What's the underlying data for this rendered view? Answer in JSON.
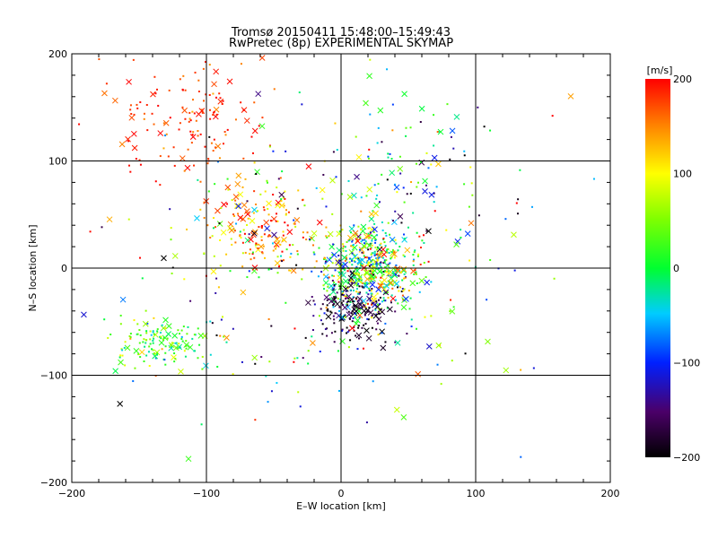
{
  "chart_data": {
    "type": "scatter",
    "title": "Tromsø 20150411 15:48:00–15:49:43",
    "subtitle": "RwPretec (8p) EXPERIMENTAL SKYMAP",
    "xlabel": "E–W location [km]",
    "ylabel": "N–S location [km]",
    "xlim": [
      -200,
      200
    ],
    "ylim": [
      -200,
      200
    ],
    "xticks": [
      "−200",
      "−100",
      "0",
      "100",
      "200"
    ],
    "yticks": [
      "−200",
      "−100",
      "0",
      "100",
      "200"
    ],
    "grid": "crosshair lines at 0 and ±100",
    "colorbar": {
      "label": "[m/s]",
      "range": [
        -200,
        200
      ],
      "ticks": [
        "200",
        "100",
        "0",
        "−100",
        "−200"
      ],
      "colormap": "black-purple-blue-cyan-green-yellow-orange-red"
    },
    "markers": [
      "dot",
      "x"
    ],
    "points_note": "approximate reconstruction: dense scatter of radar echoes; dense cluster around (0..40, -60..50) km"
  }
}
